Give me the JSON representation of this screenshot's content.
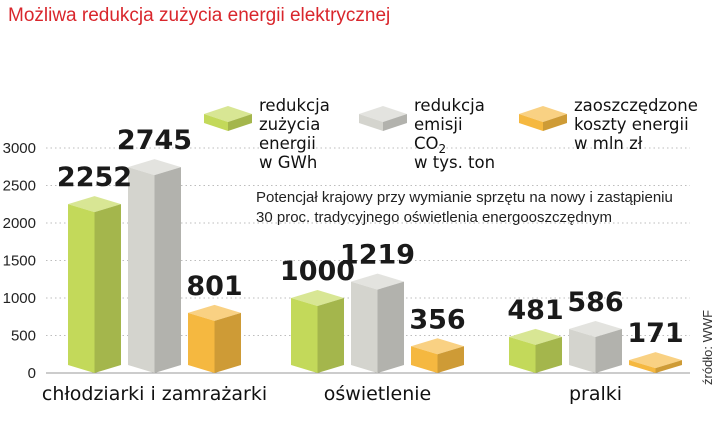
{
  "chart_data": {
    "type": "bar",
    "title": "Możliwa redukcja zużycia energii elektrycznej",
    "categories": [
      "chłodziarki i zamrażarki",
      "oświetlenie",
      "pralki"
    ],
    "series": [
      {
        "name": "redukcja zużycia energii w GWh",
        "legend_lines": [
          "redukcja",
          "zużycia",
          "energii",
          "w GWh"
        ],
        "color": "#c3d95a",
        "values": [
          2252,
          1000,
          481
        ]
      },
      {
        "name": "redukcja emisji CO2 w tys. ton",
        "legend_lines": [
          "redukcja",
          "emisji",
          "CO",
          "w tys. ton"
        ],
        "legend_sub": "2",
        "color": "#d4d4ce",
        "values": [
          2745,
          1219,
          586
        ]
      },
      {
        "name": "zaoszczędzone koszty energii w mln zł",
        "legend_lines": [
          "zaoszczędzone",
          "koszty energii",
          "w mln zł"
        ],
        "color": "#f5b840",
        "values": [
          801,
          356,
          171
        ]
      }
    ],
    "yticks": [
      0,
      500,
      1000,
      1500,
      2000,
      2500,
      3000
    ],
    "ylim": [
      0,
      3000
    ],
    "note_lines": [
      "Potencjał krajowy przy wymianie sprzętu na nowy i zastąpieniu",
      "30 proc. tradycyjnego oświetlenia energooszczędnym"
    ],
    "source": "źródło: WWF",
    "grid": true,
    "legend_position": "top-right"
  }
}
